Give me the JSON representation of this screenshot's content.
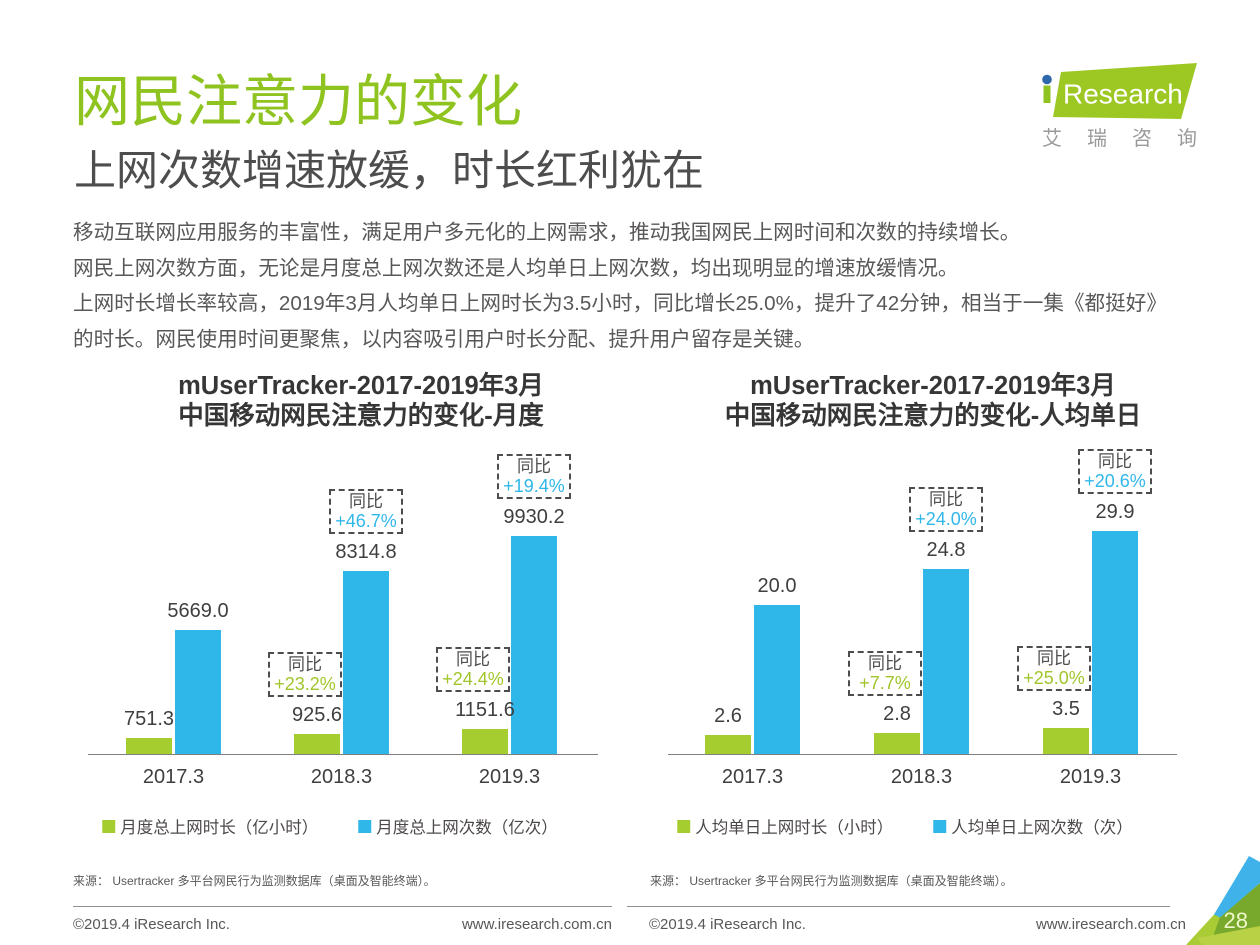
{
  "page": {
    "title": "网民注意力的变化",
    "subtitle": "上网次数增速放缓，时长红利犹在",
    "body_lines": [
      "移动互联网应用服务的丰富性，满足用户多元化的上网需求，推动我国网民上网时间和次数的持续增长。",
      "网民上网次数方面，无论是月度总上网次数还是人均单日上网次数，均出现明显的增速放缓情况。",
      "上网时长增长率较高，2019年3月人均单日上网时长为3.5小时，同比增长25.0%，提升了42分钟，相当于一集《都挺好》",
      "的时长。网民使用时间更聚焦，以内容吸引用户时长分配、提升用户留存是关键。"
    ],
    "page_number": "28"
  },
  "logo": {
    "i": "i",
    "research": "Research",
    "chinese": "艾瑞咨询"
  },
  "colors": {
    "brand_green": "#8fc31f",
    "bar_green": "#a5cd30",
    "bar_blue": "#30b7ea",
    "pct_green": "#a0c62c",
    "pct_blue": "#30b7ea",
    "logo_green": "#9dc722",
    "logo_dot_blue": "#2e68aa",
    "text_dark": "#3f3f3f",
    "text_gray": "#595757"
  },
  "chart_data": [
    {
      "type": "bar",
      "title_lines": [
        "mUserTracker-2017-2019年3月",
        "中国移动网民注意力的变化-月度"
      ],
      "categories": [
        "2017.3",
        "2018.3",
        "2019.3"
      ],
      "series": [
        {
          "name": "月度总上网时长（亿小时）",
          "color": "green",
          "values": [
            751.3,
            925.6,
            1151.6
          ]
        },
        {
          "name": "月度总上网次数（亿次）",
          "color": "blue",
          "values": [
            5669.0,
            8314.8,
            9930.2
          ]
        }
      ],
      "annotations": [
        {
          "series": 0,
          "group": 1,
          "tag": "同比",
          "pct": "+23.2%"
        },
        {
          "series": 0,
          "group": 2,
          "tag": "同比",
          "pct": "+24.4%"
        },
        {
          "series": 1,
          "group": 1,
          "tag": "同比",
          "pct": "+46.7%"
        },
        {
          "series": 1,
          "group": 2,
          "tag": "同比",
          "pct": "+19.4%"
        }
      ],
      "legend": [
        "月度总上网时长（亿小时）",
        "月度总上网次数（亿次）"
      ],
      "source": "来源： Usertracker 多平台网民行为监测数据库（桌面及智能终端）。",
      "footer_copyright": "©2019.4 iResearch Inc.",
      "footer_site": "www.iresearch.com.cn"
    },
    {
      "type": "bar",
      "title_lines": [
        "mUserTracker-2017-2019年3月",
        "中国移动网民注意力的变化-人均单日"
      ],
      "categories": [
        "2017.3",
        "2018.3",
        "2019.3"
      ],
      "series": [
        {
          "name": "人均单日上网时长（小时）",
          "color": "green",
          "values": [
            2.6,
            2.8,
            3.5
          ]
        },
        {
          "name": "人均单日上网次数（次）",
          "color": "blue",
          "values": [
            20.0,
            24.8,
            29.9
          ]
        }
      ],
      "annotations": [
        {
          "series": 0,
          "group": 1,
          "tag": "同比",
          "pct": "+7.7%"
        },
        {
          "series": 0,
          "group": 2,
          "tag": "同比",
          "pct": "+25.0%"
        },
        {
          "series": 1,
          "group": 1,
          "tag": "同比",
          "pct": "+24.0%"
        },
        {
          "series": 1,
          "group": 2,
          "tag": "同比",
          "pct": "+20.6%"
        }
      ],
      "legend": [
        "人均单日上网时长（小时）",
        "人均单日上网次数（次）"
      ],
      "source": "来源： Usertracker 多平台网民行为监测数据库（桌面及智能终端）。",
      "footer_copyright": "©2019.4 iResearch Inc.",
      "footer_site": "www.iresearch.com.cn"
    }
  ]
}
